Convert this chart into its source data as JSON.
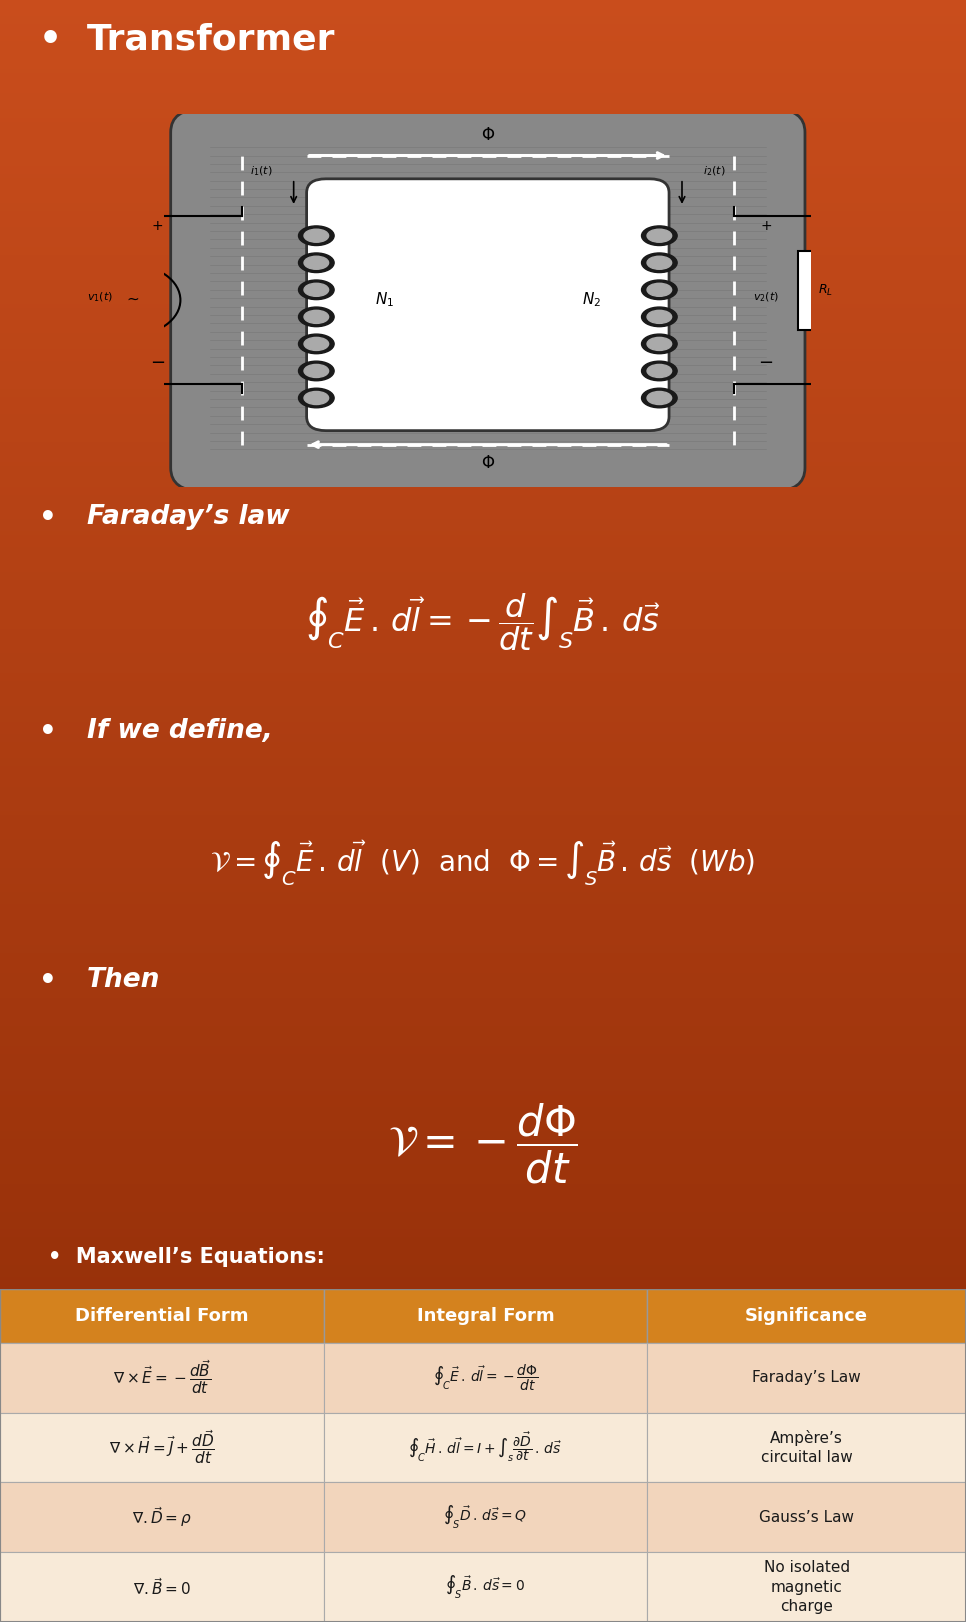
{
  "title": "Transformer",
  "bg_color_top": "#c94d1c",
  "bg_color_bottom": "#8c2a05",
  "table_header_color": "#d4821e",
  "table_row1_color": "#f2d5bc",
  "table_row2_color": "#f8ead8",
  "table_border_color": "#b06020",
  "text_white": "#ffffff",
  "text_dark": "#1a1a1a",
  "faradays_law_label": "Faraday’s law",
  "if_we_define_label": "If we define,",
  "then_label": "Then",
  "maxwells_label": "Maxwell’s Equations:",
  "diff_form_header": "Differential Form",
  "integral_form_header": "Integral Form",
  "significance_header": "Significance"
}
